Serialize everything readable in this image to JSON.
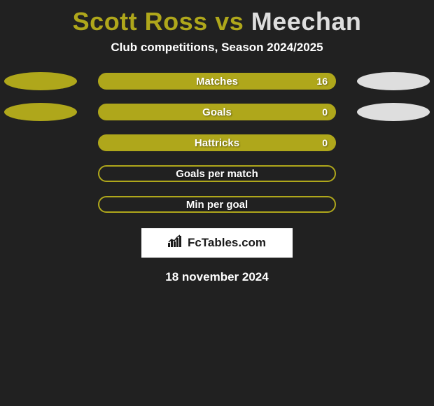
{
  "colors": {
    "player1": "#afa71b",
    "player2": "#dedede",
    "background": "#212121",
    "bar_border": "#afa71b",
    "text": "#ffffff"
  },
  "header": {
    "player1_name": "Scott Ross",
    "vs_word": "vs",
    "player2_name": "Meechan",
    "subtitle": "Club competitions, Season 2024/2025"
  },
  "stats": [
    {
      "label": "Matches",
      "left_show_oval": true,
      "right_show_oval": true,
      "value_right": "16",
      "fill_left_pct": 0,
      "fill_right_pct": 100
    },
    {
      "label": "Goals",
      "left_show_oval": true,
      "right_show_oval": true,
      "value_right": "0",
      "fill_left_pct": 0,
      "fill_right_pct": 100
    },
    {
      "label": "Hattricks",
      "left_show_oval": false,
      "right_show_oval": false,
      "value_right": "0",
      "fill_left_pct": 0,
      "fill_right_pct": 100
    },
    {
      "label": "Goals per match",
      "left_show_oval": false,
      "right_show_oval": false,
      "value_right": "",
      "fill_left_pct": 0,
      "fill_right_pct": 0
    },
    {
      "label": "Min per goal",
      "left_show_oval": false,
      "right_show_oval": false,
      "value_right": "",
      "fill_left_pct": 0,
      "fill_right_pct": 0
    }
  ],
  "brand": {
    "text": "FcTables.com"
  },
  "footer": {
    "date": "18 november 2024"
  }
}
